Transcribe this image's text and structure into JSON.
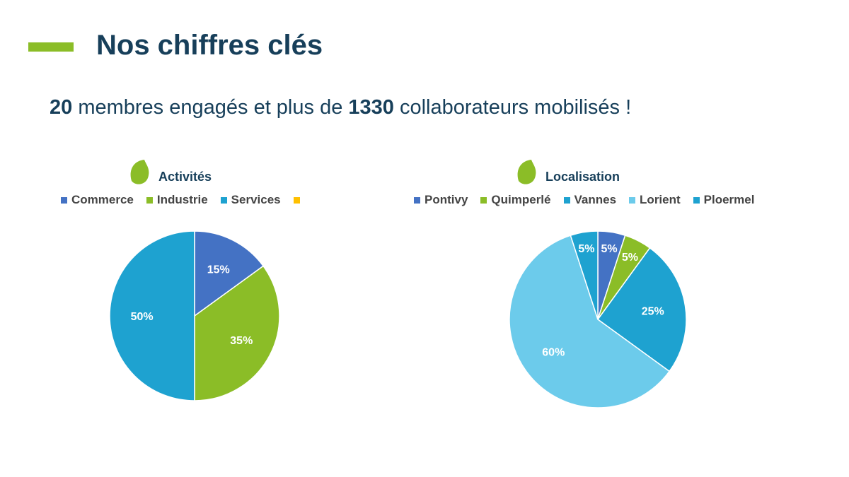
{
  "header": {
    "title": "Nos chiffres clés",
    "accent_color": "#8bbd27"
  },
  "subtitle": {
    "members_count": "20",
    "members_text": " membres engagés  et plus de ",
    "collab_count": "1330",
    "collab_text": " collaborateurs mobilisés !"
  },
  "icons": {
    "chart_header_icon": "leaf-icon"
  },
  "chart_data": [
    {
      "type": "pie",
      "title": "Activités",
      "legend_placement": "top",
      "slices": [
        {
          "name": "Commerce",
          "value": 15,
          "label": "15%",
          "color": "#4472c4"
        },
        {
          "name": "Industrie",
          "value": 35,
          "label": "35%",
          "color": "#8bbd27"
        },
        {
          "name": "Services",
          "value": 50,
          "label": "50%",
          "color": "#1ea2d0"
        },
        {
          "name": "",
          "value": 0,
          "label": "",
          "color": "#ffc000"
        }
      ]
    },
    {
      "type": "pie",
      "title": "Localisation",
      "legend_placement": "top",
      "slices": [
        {
          "name": "Pontivy",
          "value": 5,
          "label": "5%",
          "color": "#4472c4"
        },
        {
          "name": "Quimperlé",
          "value": 5,
          "label": "5%",
          "color": "#8bbd27"
        },
        {
          "name": "Vannes",
          "value": 25,
          "label": "25%",
          "color": "#1ea2d0"
        },
        {
          "name": "Lorient",
          "value": 60,
          "label": "60%",
          "color": "#6ccbeb"
        },
        {
          "name": "Ploermel",
          "value": 5,
          "label": "5%",
          "color": "#1ea2d0"
        }
      ]
    }
  ]
}
